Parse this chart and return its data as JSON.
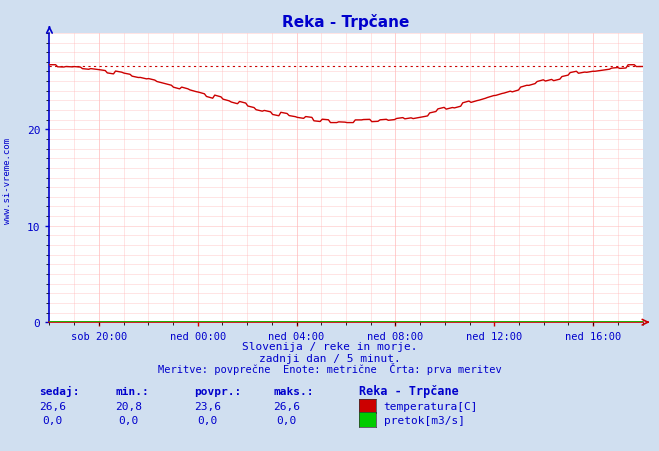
{
  "title": "Reka - Trpčane",
  "title_color": "#0000cc",
  "bg_color": "#d0dff0",
  "plot_bg_color": "#ffffff",
  "grid_color": "#ffbbbb",
  "x_tick_labels": [
    "sob 20:00",
    "ned 00:00",
    "ned 04:00",
    "ned 08:00",
    "ned 12:00",
    "ned 16:00"
  ],
  "x_tick_positions": [
    0.0833,
    0.25,
    0.4167,
    0.5833,
    0.75,
    0.9167
  ],
  "y_min": 0,
  "y_max": 30,
  "y_ticks": [
    0,
    10,
    20
  ],
  "temp_min": 20.8,
  "temp_max": 26.6,
  "temp_avg": 23.6,
  "temp_current": 26.6,
  "subtitle1": "Slovenija / reke in morje.",
  "subtitle2": "zadnji dan / 5 minut.",
  "subtitle3": "Meritve: povprečne  Enote: metrične  Črta: prva meritev",
  "label_sedaj": "sedaj:",
  "label_min": "min.:",
  "label_povpr": "povpr.:",
  "label_maks": "maks.:",
  "label_station": "Reka - Trpčane",
  "label_temp": "temperatura[C]",
  "label_flow": "pretok[m3/s]",
  "temp_color": "#cc0000",
  "flow_color": "#00cc00",
  "axis_color_y": "#0000cc",
  "axis_color_x": "#cc0000",
  "text_color": "#0000cc",
  "watermark": "www.si-vreme.com",
  "val_sedaj_t": "26,6",
  "val_min_t": "20,8",
  "val_povpr_t": "23,6",
  "val_maks_t": "26,6",
  "val_sedaj_f": "0,0",
  "val_min_f": "0,0",
  "val_povpr_f": "0,0",
  "val_maks_f": "0,0"
}
